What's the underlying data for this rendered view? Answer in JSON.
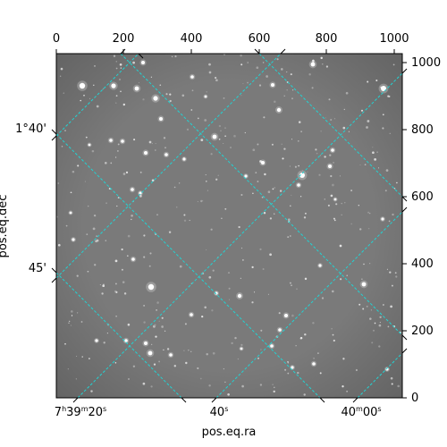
{
  "axes": {
    "xlabel": "pos.eq.ra",
    "ylabel": "pos.eq.dec",
    "pixel_x_ticks": [
      "0",
      "200",
      "400",
      "600",
      "800",
      "1000"
    ],
    "pixel_y_ticks": [
      "0",
      "200",
      "400",
      "600",
      "800",
      "1000"
    ],
    "ra_ticks": [
      {
        "h": "7",
        "hs": "h",
        "m": "39",
        "ms": "m",
        "s": "20",
        "ss": "s"
      },
      {
        "h": "",
        "hs": "",
        "m": "",
        "ms": "",
        "s": "40",
        "ss": "s"
      },
      {
        "h": "",
        "hs": "",
        "m": "40",
        "ms": "m",
        "s": "00",
        "ss": "s"
      }
    ],
    "dec_ticks": [
      "1°40'",
      "45'"
    ]
  },
  "image": {
    "background_color": "#7a7a7a",
    "grid_color": "#22d3d3",
    "frame_color": "#000000"
  }
}
